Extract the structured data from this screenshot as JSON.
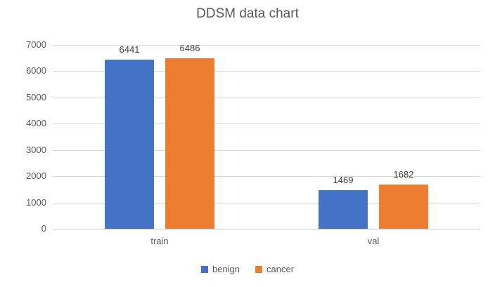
{
  "chart_data": {
    "type": "bar",
    "title": "DDSM data chart",
    "categories": [
      "train",
      "val"
    ],
    "series": [
      {
        "name": "benign",
        "color": "#4472C4",
        "values": [
          6441,
          1469
        ]
      },
      {
        "name": "cancer",
        "color": "#ED7D31",
        "values": [
          6486,
          1682
        ]
      }
    ],
    "ylim": [
      0,
      7000
    ],
    "ytick_step": 1000,
    "ytick_labels": [
      "0",
      "1000",
      "2000",
      "3000",
      "4000",
      "5000",
      "6000",
      "7000"
    ],
    "xlabel": "",
    "ylabel": "",
    "grid": true,
    "data_labels": true,
    "legend_position": "bottom"
  }
}
